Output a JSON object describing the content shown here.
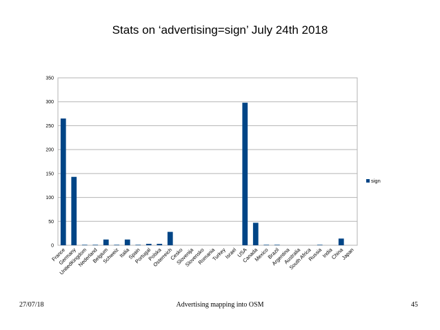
{
  "slide": {
    "title": "Stats on ‘advertising=sign’ July 24th 2018",
    "footer_date": "27/07/18",
    "footer_center": "Advertising mapping into OSM",
    "page_number": "45"
  },
  "chart_data": {
    "type": "bar",
    "title": "Stats on ‘advertising=sign’ July 24th 2018",
    "xlabel": "",
    "ylabel": "",
    "ylim": [
      0,
      350
    ],
    "yticks": [
      0,
      50,
      100,
      150,
      200,
      250,
      300,
      350
    ],
    "grid": true,
    "legend": "right",
    "bar_color": "#004586",
    "categories": [
      "France",
      "Germany",
      "UnitedKingdom",
      "Nederland",
      "Belgium",
      "Schweiz",
      "Italia",
      "Spain",
      "Portugal",
      "Polska",
      "Osterreich",
      "Cesko",
      "Slovenija",
      "Slovensko",
      "Romania",
      "Turkey",
      "Israel",
      "USA",
      "Canada",
      "Mexico",
      "Brazil",
      "Argentina",
      "Australia",
      "South Africa",
      "Russia",
      "India",
      "China",
      "Japan"
    ],
    "series": [
      {
        "name": "sign",
        "values": [
          265,
          143,
          1,
          1,
          12,
          1,
          12,
          1,
          3,
          3,
          28,
          0,
          0,
          0,
          0,
          0,
          0,
          298,
          47,
          1,
          1,
          0,
          0,
          0,
          1,
          0,
          14,
          0
        ]
      }
    ]
  }
}
